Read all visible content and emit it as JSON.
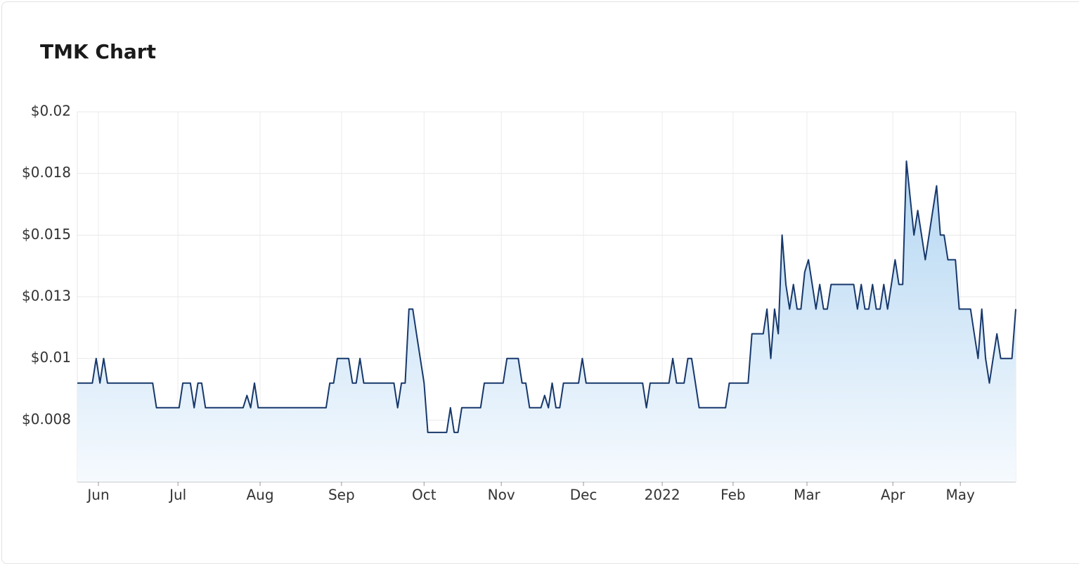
{
  "chart_data": {
    "type": "area",
    "title": "TMK Chart",
    "color": "#17386b",
    "values": [
      0.009,
      0.009,
      0.009,
      0.009,
      0.009,
      0.01,
      0.009,
      0.01,
      0.009,
      0.009,
      0.009,
      0.009,
      0.009,
      0.009,
      0.009,
      0.009,
      0.009,
      0.009,
      0.009,
      0.009,
      0.009,
      0.008,
      0.008,
      0.008,
      0.008,
      0.008,
      0.008,
      0.008,
      0.009,
      0.009,
      0.009,
      0.008,
      0.009,
      0.009,
      0.008,
      0.008,
      0.008,
      0.008,
      0.008,
      0.008,
      0.008,
      0.008,
      0.008,
      0.008,
      0.008,
      0.0085,
      0.008,
      0.009,
      0.008,
      0.008,
      0.008,
      0.008,
      0.008,
      0.008,
      0.008,
      0.008,
      0.008,
      0.008,
      0.008,
      0.008,
      0.008,
      0.008,
      0.008,
      0.008,
      0.008,
      0.008,
      0.008,
      0.009,
      0.009,
      0.01,
      0.01,
      0.01,
      0.01,
      0.009,
      0.009,
      0.01,
      0.009,
      0.009,
      0.009,
      0.009,
      0.009,
      0.009,
      0.009,
      0.009,
      0.009,
      0.008,
      0.009,
      0.009,
      0.012,
      0.012,
      0.011,
      0.01,
      0.009,
      0.007,
      0.007,
      0.007,
      0.007,
      0.007,
      0.007,
      0.008,
      0.007,
      0.007,
      0.008,
      0.008,
      0.008,
      0.008,
      0.008,
      0.008,
      0.009,
      0.009,
      0.009,
      0.009,
      0.009,
      0.009,
      0.01,
      0.01,
      0.01,
      0.01,
      0.009,
      0.009,
      0.008,
      0.008,
      0.008,
      0.008,
      0.0085,
      0.008,
      0.009,
      0.008,
      0.008,
      0.009,
      0.009,
      0.009,
      0.009,
      0.009,
      0.01,
      0.009,
      0.009,
      0.009,
      0.009,
      0.009,
      0.009,
      0.009,
      0.009,
      0.009,
      0.009,
      0.009,
      0.009,
      0.009,
      0.009,
      0.009,
      0.009,
      0.008,
      0.009,
      0.009,
      0.009,
      0.009,
      0.009,
      0.009,
      0.01,
      0.009,
      0.009,
      0.009,
      0.01,
      0.01,
      0.009,
      0.008,
      0.008,
      0.008,
      0.008,
      0.008,
      0.008,
      0.008,
      0.008,
      0.009,
      0.009,
      0.009,
      0.009,
      0.009,
      0.009,
      0.011,
      0.011,
      0.011,
      0.011,
      0.012,
      0.01,
      0.012,
      0.011,
      0.015,
      0.013,
      0.012,
      0.013,
      0.012,
      0.012,
      0.0135,
      0.014,
      0.013,
      0.012,
      0.013,
      0.012,
      0.012,
      0.013,
      0.013,
      0.013,
      0.013,
      0.013,
      0.013,
      0.013,
      0.012,
      0.013,
      0.012,
      0.012,
      0.013,
      0.012,
      0.012,
      0.013,
      0.012,
      0.013,
      0.014,
      0.013,
      0.013,
      0.018,
      0.0165,
      0.015,
      0.016,
      0.015,
      0.014,
      0.015,
      0.016,
      0.017,
      0.015,
      0.015,
      0.014,
      0.014,
      0.014,
      0.012,
      0.012,
      0.012,
      0.012,
      0.011,
      0.01,
      0.012,
      0.01,
      0.009,
      0.01,
      0.011,
      0.01,
      0.01,
      0.01,
      0.01,
      0.012
    ],
    "xlim": [
      0,
      249
    ],
    "xticks": [
      {
        "value": 5.6,
        "label": "Jun"
      },
      {
        "value": 26.7,
        "label": "Jul"
      },
      {
        "value": 48.5,
        "label": "Aug"
      },
      {
        "value": 70.1,
        "label": "Sep"
      },
      {
        "value": 92.0,
        "label": "Oct"
      },
      {
        "value": 112.5,
        "label": "Nov"
      },
      {
        "value": 134.3,
        "label": "Dec"
      },
      {
        "value": 155.2,
        "label": "2022"
      },
      {
        "value": 174.0,
        "label": "Feb"
      },
      {
        "value": 193.6,
        "label": "Mar"
      },
      {
        "value": 216.4,
        "label": "Apr"
      },
      {
        "value": 234.3,
        "label": "May"
      }
    ],
    "ylim": [
      0.005,
      0.02
    ],
    "yticks": [
      {
        "value": 0.0075,
        "label": "$0.008"
      },
      {
        "value": 0.01,
        "label": "$0.01"
      },
      {
        "value": 0.0125,
        "label": "$0.013"
      },
      {
        "value": 0.015,
        "label": "$0.015"
      },
      {
        "value": 0.0175,
        "label": "$0.018"
      },
      {
        "value": 0.02,
        "label": "$0.02"
      }
    ],
    "grid": true
  }
}
